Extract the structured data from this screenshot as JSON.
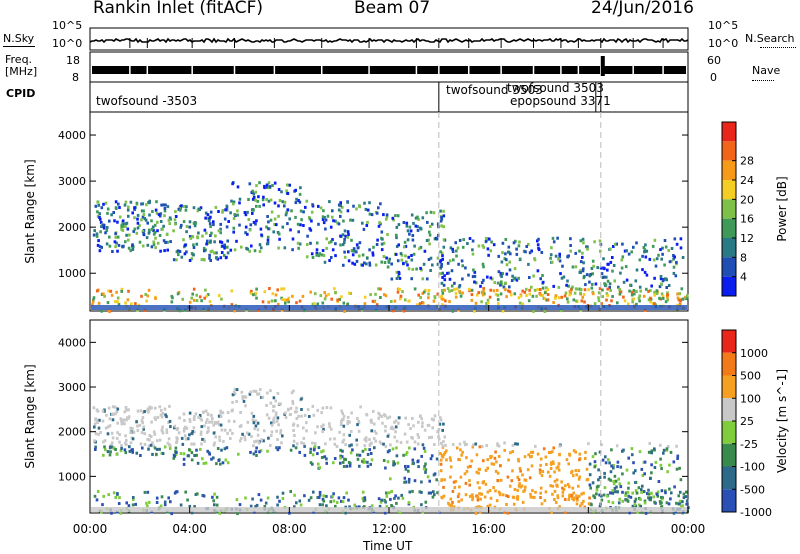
{
  "header": {
    "site": "Rankin Inlet (fitACF)",
    "beam": "Beam 07",
    "date": "24/Jun/2016"
  },
  "panels": {
    "nsky": {
      "label": "N.Sky",
      "yticks": [
        "10^5",
        "10^0"
      ],
      "right_label": "N.Search",
      "right_yticks": [
        "10^5",
        "10^0"
      ]
    },
    "freq": {
      "label_line1": "Freq.",
      "label_line2": "[MHz]",
      "yticks": [
        "18",
        "8"
      ],
      "right_label": "Nave",
      "right_yticks": [
        "60",
        "0"
      ]
    },
    "cpid": {
      "label": "CPID",
      "segments": [
        "twofsound -3503",
        "twofsound 3503",
        "twofsound 3503",
        "epopsound 3371"
      ]
    }
  },
  "chart_data": [
    {
      "type": "heatmap",
      "title": "",
      "xlabel": "",
      "ylabel": "Slant Range [km]",
      "x_ticks": [
        "00:00",
        "04:00",
        "08:00",
        "12:00",
        "16:00",
        "20:00",
        "00:00"
      ],
      "y_ticks": [
        1000,
        2000,
        3000,
        4000
      ],
      "ylim": [
        180,
        4500
      ],
      "colorbar": {
        "label": "Power [dB]",
        "ticks": [
          4,
          8,
          12,
          16,
          20,
          24,
          28
        ],
        "colors": [
          "#0a1ef0",
          "#1f4fb5",
          "#2a7a86",
          "#3f9a5a",
          "#7fc04a",
          "#f4ce24",
          "#f79a1a",
          "#f1641a",
          "#e8261a"
        ]
      }
    },
    {
      "type": "heatmap",
      "title": "",
      "xlabel": "Time UT",
      "ylabel": "Slant Range [km]",
      "x_ticks": [
        "00:00",
        "04:00",
        "08:00",
        "12:00",
        "16:00",
        "20:00",
        "00:00"
      ],
      "y_ticks": [
        1000,
        2000,
        3000,
        4000
      ],
      "ylim": [
        180,
        4500
      ],
      "colorbar": {
        "label": "Velocity [m s^-1]",
        "ticks": [
          1000,
          500,
          100,
          25,
          -25,
          -100,
          -500,
          -1000
        ],
        "colors": [
          "#2a4fb5",
          "#2d6a8a",
          "#3a8a4e",
          "#7fcc3c",
          "#c8c8c8",
          "#f5a020",
          "#f37a18",
          "#e8261a"
        ]
      }
    }
  ],
  "markers": {
    "dashed_times": [
      "14:00",
      "20:30"
    ]
  }
}
